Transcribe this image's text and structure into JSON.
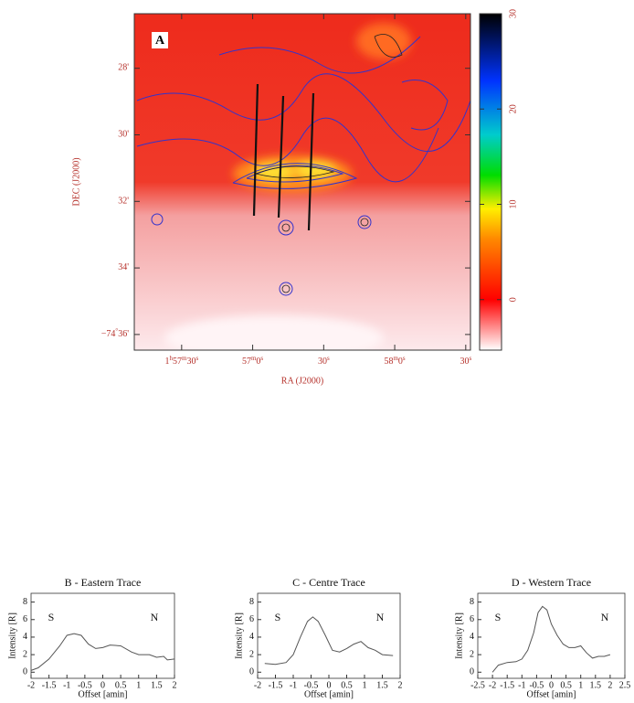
{
  "chart_data": [
    {
      "type": "image",
      "panel_label": "A",
      "xlabel": "RA (J2000)",
      "ylabel": "DEC (J2000)",
      "xlim": [
        7030,
        7172
      ],
      "xticks": [
        {
          "value": 7050,
          "label": "1h57m30s"
        },
        {
          "value": 7080,
          "label": "57m0s"
        },
        {
          "value": 7110,
          "label": "30s"
        },
        {
          "value": 7140,
          "label": "58m0s"
        },
        {
          "value": 7170,
          "label": "30s"
        }
      ],
      "ylim": [
        -36.47,
        -26.36
      ],
      "yticks": [
        {
          "value": -28,
          "label": "28'"
        },
        {
          "value": -30,
          "label": "30'"
        },
        {
          "value": -32,
          "label": "32'"
        },
        {
          "value": -34,
          "label": "34'"
        },
        {
          "value": -36,
          "label": "−74°36'"
        }
      ],
      "colorbar": {
        "ylim": [
          -5.3,
          30
        ],
        "yticks": [
          0,
          10,
          20,
          30
        ]
      }
    },
    {
      "type": "line",
      "title": "B - Eastern Trace",
      "xlabel": "Offset [amin]",
      "ylabel": "Intensity [R]",
      "annotations": [
        "S",
        "N"
      ],
      "x": [
        -2,
        -1.8,
        -1.5,
        -1.2,
        -1,
        -0.8,
        -0.6,
        -0.4,
        -0.2,
        0,
        0.2,
        0.5,
        0.8,
        1,
        1.3,
        1.5,
        1.7,
        1.8,
        2
      ],
      "values": [
        0.2,
        0.5,
        1.5,
        3,
        4.2,
        4.4,
        4.2,
        3.2,
        2.7,
        2.8,
        3.1,
        3,
        2.3,
        2,
        2,
        1.7,
        1.8,
        1.4,
        1.5
      ],
      "color": "#555555",
      "xlim": [
        -2,
        2
      ],
      "xticks": [
        -2,
        -1.5,
        -1,
        -0.5,
        0,
        0.5,
        1,
        1.5,
        2
      ],
      "ylim": [
        -0.7,
        9
      ],
      "yticks": [
        0,
        2,
        4,
        6,
        8
      ]
    },
    {
      "type": "line",
      "title": "C - Centre Trace",
      "xlabel": "Offset [amin]",
      "ylabel": "Intensity [R]",
      "annotations": [
        "S",
        "N"
      ],
      "x": [
        -1.8,
        -1.5,
        -1.2,
        -1,
        -0.8,
        -0.6,
        -0.45,
        -0.3,
        -0.1,
        0.1,
        0.3,
        0.5,
        0.7,
        0.9,
        1.1,
        1.3,
        1.5,
        1.8
      ],
      "values": [
        1,
        0.9,
        1.1,
        2,
        4,
        5.8,
        6.3,
        5.8,
        4.2,
        2.5,
        2.3,
        2.7,
        3.2,
        3.5,
        2.8,
        2.5,
        2,
        1.9
      ],
      "color": "#555555",
      "xlim": [
        -2,
        2
      ],
      "xticks": [
        -2,
        -1.5,
        -1,
        -0.5,
        0,
        0.5,
        1,
        1.5,
        2
      ],
      "ylim": [
        -0.7,
        9
      ],
      "yticks": [
        0,
        2,
        4,
        6,
        8
      ]
    },
    {
      "type": "line",
      "title": "D - Western Trace",
      "xlabel": "Offset [amin]",
      "ylabel": "Intensity [R]",
      "annotations": [
        "S",
        "N"
      ],
      "x": [
        -2,
        -1.8,
        -1.5,
        -1.2,
        -1,
        -0.8,
        -0.6,
        -0.45,
        -0.3,
        -0.15,
        0,
        0.2,
        0.4,
        0.6,
        0.8,
        1,
        1.2,
        1.4,
        1.6,
        1.8,
        2
      ],
      "values": [
        0,
        0.8,
        1.1,
        1.2,
        1.5,
        2.5,
        4.5,
        6.8,
        7.5,
        7.1,
        5.5,
        4.2,
        3.2,
        2.8,
        2.8,
        3,
        2.2,
        1.6,
        1.8,
        1.8,
        2
      ],
      "color": "#555555",
      "xlim": [
        -2.5,
        2.5
      ],
      "xticks": [
        -2.5,
        -2,
        -1.5,
        -1,
        -0.5,
        0,
        0.5,
        1,
        1.5,
        2,
        2.5
      ],
      "ylim": [
        -0.7,
        9
      ],
      "yticks": [
        0,
        2,
        4,
        6,
        8
      ]
    }
  ]
}
